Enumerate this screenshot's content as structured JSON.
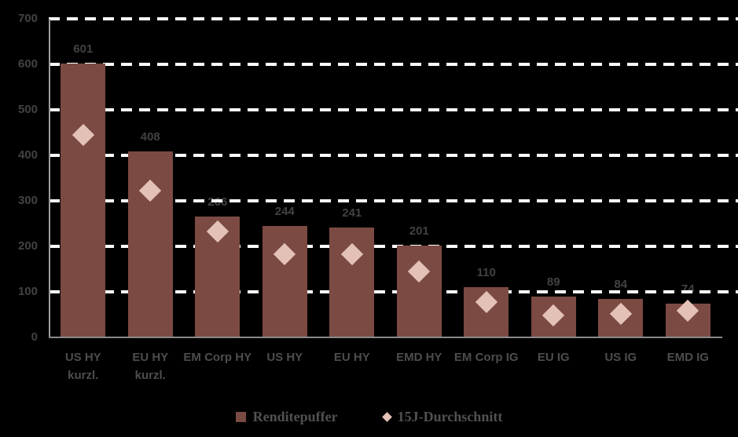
{
  "chart_data": {
    "type": "bar",
    "title": "",
    "xlabel": "",
    "ylabel": "",
    "ylim": [
      0,
      700
    ],
    "yticks": [
      0,
      100,
      200,
      300,
      400,
      500,
      600,
      700
    ],
    "grid": "horizontal-dashed",
    "legend_position": "bottom-center",
    "bar_value_labels_shown": true,
    "categories": [
      "US HY kurzl.",
      "EU HY kurzl.",
      "EM Corp HY",
      "US HY",
      "EU HY",
      "EMD HY",
      "EM Corp IG",
      "EU IG",
      "US IG",
      "EMD IG"
    ],
    "series": [
      {
        "name": "Renditepuffer",
        "type": "bar",
        "values": [
          601,
          408,
          266,
          244,
          241,
          201,
          110,
          89,
          84,
          74
        ]
      },
      {
        "name": "15J-Durchschnitt",
        "type": "scatter",
        "marker": "diamond",
        "values": [
          445,
          322,
          232,
          182,
          183,
          145,
          78,
          48,
          52,
          58
        ]
      }
    ]
  },
  "colors": {
    "background": "#000000",
    "bar": "#7B4A42",
    "diamond": "#E3C1B7",
    "grid": "#FFFFFF",
    "axis": "#9C9C9C",
    "tick_text": "#424242",
    "category_text": "#4D4D4D",
    "legend_text": "#515151"
  }
}
